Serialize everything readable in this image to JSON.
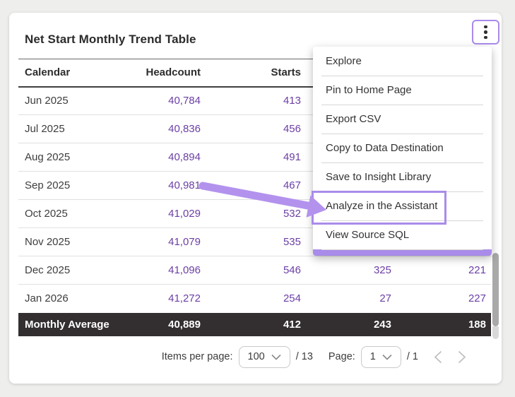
{
  "card": {
    "title": "Net Start Monthly Trend Table"
  },
  "menu_button": {
    "icon": "kebab-menu-icon"
  },
  "table": {
    "columns": [
      "Calendar",
      "Headcount",
      "Starts",
      "",
      ""
    ],
    "rows": [
      [
        "Jun 2025",
        "40,784",
        "413",
        "",
        ""
      ],
      [
        "Jul 2025",
        "40,836",
        "456",
        "",
        ""
      ],
      [
        "Aug 2025",
        "40,894",
        "491",
        "",
        ""
      ],
      [
        "Sep 2025",
        "40,981",
        "467",
        "",
        ""
      ],
      [
        "Oct 2025",
        "41,029",
        "532",
        "",
        ""
      ],
      [
        "Nov 2025",
        "41,079",
        "535",
        "",
        ""
      ],
      [
        "Dec 2025",
        "41,096",
        "546",
        "325",
        "221"
      ],
      [
        "Jan 2026",
        "41,272",
        "254",
        "27",
        "227"
      ]
    ],
    "summary_row": [
      "Monthly Average",
      "40,889",
      "412",
      "243",
      "188"
    ]
  },
  "menu": {
    "items": [
      "Explore",
      "Pin to Home Page",
      "Export CSV",
      "Copy to Data Destination",
      "Save to Insight Library",
      "Analyze in the Assistant",
      "View Source SQL"
    ],
    "highlighted_item": "Analyze in the Assistant"
  },
  "pagination": {
    "items_per_page_label": "Items per page:",
    "items_per_page_value": "100",
    "items_total": "/ 13",
    "page_label": "Page:",
    "page_value": "1",
    "page_total": "/ 1"
  },
  "colors": {
    "accent_value_purple": "#6b3fa5",
    "annotation_purple": "#a98bea",
    "arrow_purple": "#b392ee",
    "summary_row_bg": "#332f30"
  }
}
